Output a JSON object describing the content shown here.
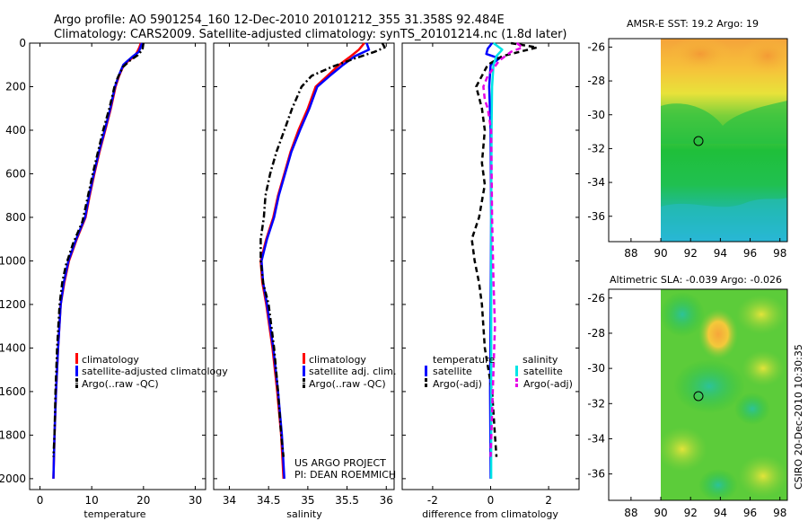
{
  "header": {
    "title_line1": "Argo profile: AO 5901254_160 12-Dec-2010 20101212_355 31.358S 92.484E",
    "title_line2": "Climatology: CARS2009. Satellite-adjusted climatology: synTS_20101214.nc (1.8d later)"
  },
  "credit": {
    "line1": "US ARGO PROJECT",
    "line2": "PI: DEAN ROEMMICH",
    "timestamp": "CSIRO 20-Dec-2010 10:30:35"
  },
  "colors": {
    "climatology": "#ff0000",
    "satellite": "#0000ff",
    "argo": "#000000",
    "salinity_satellite": "#00e5e5",
    "salinity_argo": "#e600e6"
  },
  "chart_data": [
    {
      "id": "temperature",
      "type": "line",
      "xlabel": "temperature",
      "ylabel": "",
      "xlim": [
        -2,
        32
      ],
      "ylim": [
        2050,
        0
      ],
      "xticks": [
        0,
        10,
        20,
        30
      ],
      "yticks": [
        0,
        200,
        400,
        600,
        800,
        1000,
        1200,
        1400,
        1600,
        1800,
        2000
      ],
      "legend": {
        "placement": "bottom-right",
        "entries": [
          "climatology",
          "satellite-adjusted climatology",
          "Argo(..raw -QC)"
        ]
      },
      "series": [
        {
          "name": "climatology",
          "style": "solid",
          "color": "#ff0000",
          "points": [
            [
              19.5,
              0
            ],
            [
              19.2,
              20
            ],
            [
              18.8,
              40
            ],
            [
              18.3,
              60
            ],
            [
              17.2,
              80
            ],
            [
              16.2,
              100
            ],
            [
              15.3,
              150
            ],
            [
              14.6,
              200
            ],
            [
              13.7,
              300
            ],
            [
              12.6,
              400
            ],
            [
              11.5,
              500
            ],
            [
              10.5,
              600
            ],
            [
              9.6,
              700
            ],
            [
              8.8,
              800
            ],
            [
              7.1,
              900
            ],
            [
              5.6,
              1000
            ],
            [
              4.7,
              1100
            ],
            [
              4.0,
              1200
            ],
            [
              3.5,
              1400
            ],
            [
              3.1,
              1600
            ],
            [
              2.8,
              1800
            ],
            [
              2.6,
              2000
            ]
          ]
        },
        {
          "name": "satellite-adjusted climatology",
          "style": "solid",
          "color": "#0000ff",
          "points": [
            [
              19.7,
              0
            ],
            [
              19.4,
              20
            ],
            [
              19.1,
              40
            ],
            [
              18.0,
              60
            ],
            [
              17.0,
              80
            ],
            [
              16.1,
              100
            ],
            [
              15.2,
              150
            ],
            [
              14.5,
              200
            ],
            [
              13.6,
              300
            ],
            [
              12.5,
              400
            ],
            [
              11.4,
              500
            ],
            [
              10.4,
              600
            ],
            [
              9.5,
              700
            ],
            [
              8.7,
              800
            ],
            [
              7.0,
              900
            ],
            [
              5.5,
              1000
            ],
            [
              4.6,
              1100
            ],
            [
              4.0,
              1200
            ],
            [
              3.5,
              1400
            ],
            [
              3.1,
              1600
            ],
            [
              2.8,
              1800
            ],
            [
              2.6,
              2000
            ]
          ]
        },
        {
          "name": "Argo(..raw -QC)",
          "style": "dashdot",
          "color": "#000000",
          "points": [
            [
              20.0,
              0
            ],
            [
              19.9,
              15
            ],
            [
              19.8,
              30
            ],
            [
              18.9,
              55
            ],
            [
              17.4,
              80
            ],
            [
              16.0,
              110
            ],
            [
              15.0,
              160
            ],
            [
              14.4,
              200
            ],
            [
              13.4,
              300
            ],
            [
              12.2,
              400
            ],
            [
              11.2,
              500
            ],
            [
              10.2,
              600
            ],
            [
              9.3,
              700
            ],
            [
              8.2,
              820
            ],
            [
              6.4,
              920
            ],
            [
              5.0,
              1020
            ],
            [
              4.3,
              1100
            ],
            [
              3.8,
              1200
            ],
            [
              3.3,
              1400
            ],
            [
              3.0,
              1600
            ],
            [
              2.8,
              1800
            ],
            [
              2.6,
              1900
            ]
          ]
        }
      ]
    },
    {
      "id": "salinity",
      "type": "line",
      "xlabel": "salinity",
      "ylabel": "",
      "xlim": [
        33.8,
        36.1
      ],
      "ylim": [
        2050,
        0
      ],
      "xticks": [
        34,
        34.5,
        35,
        35.5,
        36
      ],
      "yticks": [
        0,
        200,
        400,
        600,
        800,
        1000,
        1200,
        1400,
        1600,
        1800,
        2000
      ],
      "legend": {
        "placement": "bottom-right",
        "entries": [
          "climatology",
          "satellite adj. clim.",
          "Argo(..raw -QC)"
        ]
      },
      "series": [
        {
          "name": "climatology",
          "style": "solid",
          "color": "#ff0000",
          "points": [
            [
              35.72,
              0
            ],
            [
              35.65,
              30
            ],
            [
              35.55,
              60
            ],
            [
              35.4,
              100
            ],
            [
              35.25,
              150
            ],
            [
              35.1,
              200
            ],
            [
              35.0,
              300
            ],
            [
              34.88,
              400
            ],
            [
              34.78,
              500
            ],
            [
              34.7,
              600
            ],
            [
              34.62,
              700
            ],
            [
              34.56,
              800
            ],
            [
              34.47,
              900
            ],
            [
              34.4,
              1000
            ],
            [
              34.42,
              1100
            ],
            [
              34.47,
              1200
            ],
            [
              34.55,
              1400
            ],
            [
              34.61,
              1600
            ],
            [
              34.66,
              1800
            ],
            [
              34.69,
              2000
            ]
          ]
        },
        {
          "name": "satellite adj. clim.",
          "style": "solid",
          "color": "#0000ff",
          "points": [
            [
              35.75,
              0
            ],
            [
              35.78,
              30
            ],
            [
              35.6,
              60
            ],
            [
              35.45,
              100
            ],
            [
              35.28,
              150
            ],
            [
              35.12,
              200
            ],
            [
              35.02,
              300
            ],
            [
              34.9,
              400
            ],
            [
              34.79,
              500
            ],
            [
              34.71,
              600
            ],
            [
              34.63,
              700
            ],
            [
              34.57,
              800
            ],
            [
              34.48,
              900
            ],
            [
              34.41,
              1000
            ],
            [
              34.43,
              1100
            ],
            [
              34.48,
              1200
            ],
            [
              34.56,
              1400
            ],
            [
              34.62,
              1600
            ],
            [
              34.67,
              1800
            ],
            [
              34.7,
              2000
            ]
          ]
        },
        {
          "name": "Argo(..raw -QC)",
          "style": "dashdot",
          "color": "#000000",
          "points": [
            [
              35.95,
              0
            ],
            [
              35.98,
              20
            ],
            [
              35.85,
              40
            ],
            [
              35.6,
              70
            ],
            [
              35.3,
              110
            ],
            [
              35.05,
              150
            ],
            [
              34.92,
              200
            ],
            [
              34.8,
              300
            ],
            [
              34.7,
              400
            ],
            [
              34.6,
              500
            ],
            [
              34.52,
              600
            ],
            [
              34.46,
              700
            ],
            [
              34.44,
              800
            ],
            [
              34.4,
              900
            ],
            [
              34.4,
              1000
            ],
            [
              34.43,
              1100
            ],
            [
              34.5,
              1200
            ],
            [
              34.57,
              1400
            ],
            [
              34.62,
              1600
            ],
            [
              34.66,
              1800
            ],
            [
              34.69,
              1900
            ]
          ]
        }
      ]
    },
    {
      "id": "difference",
      "type": "line",
      "xlabel": "difference from climatology",
      "ylabel": "",
      "xlim": [
        -3.05,
        3.05
      ],
      "ylim": [
        2050,
        0
      ],
      "xticks": [
        -2,
        0,
        2
      ],
      "yticks": [
        0,
        200,
        400,
        600,
        800,
        1000,
        1200,
        1400,
        1600,
        1800,
        2000
      ],
      "legend": {
        "placement": "bottom",
        "temperature_header": "temperature",
        "salinity_header": "salinity",
        "entries": [
          "satellite",
          "Argo(-adj)",
          "satellite",
          "Argo(-adj)"
        ]
      },
      "series": [
        {
          "name": "temperature satellite",
          "style": "solid",
          "color": "#0000ff",
          "points": [
            [
              0.05,
              0
            ],
            [
              -0.1,
              25
            ],
            [
              -0.15,
              50
            ],
            [
              0.3,
              70
            ],
            [
              0.0,
              100
            ],
            [
              -0.05,
              200
            ],
            [
              0.0,
              400
            ],
            [
              0.02,
              800
            ],
            [
              0.0,
              1200
            ],
            [
              -0.02,
              1600
            ],
            [
              0.0,
              2000
            ]
          ]
        },
        {
          "name": "temperature Argo(-adj)",
          "style": "dashed",
          "color": "#000000",
          "points": [
            [
              0.7,
              0
            ],
            [
              1.6,
              20
            ],
            [
              1.0,
              40
            ],
            [
              0.4,
              60
            ],
            [
              -0.1,
              100
            ],
            [
              -0.5,
              200
            ],
            [
              -0.3,
              300
            ],
            [
              -0.2,
              400
            ],
            [
              -0.3,
              550
            ],
            [
              -0.2,
              650
            ],
            [
              -0.4,
              800
            ],
            [
              -0.65,
              900
            ],
            [
              -0.55,
              1000
            ],
            [
              -0.4,
              1100
            ],
            [
              -0.3,
              1200
            ],
            [
              -0.2,
              1400
            ],
            [
              0.05,
              1600
            ],
            [
              0.15,
              1800
            ],
            [
              0.2,
              1900
            ]
          ]
        },
        {
          "name": "salinity satellite",
          "style": "solid",
          "color": "#00e5e5",
          "points": [
            [
              0.1,
              0
            ],
            [
              0.4,
              30
            ],
            [
              0.2,
              60
            ],
            [
              0.1,
              100
            ],
            [
              0.05,
              200
            ],
            [
              0.03,
              400
            ],
            [
              0.02,
              800
            ],
            [
              0.02,
              1200
            ],
            [
              0.02,
              1600
            ],
            [
              0.02,
              2000
            ]
          ]
        },
        {
          "name": "salinity Argo(-adj)",
          "style": "dashed",
          "color": "#e600e6",
          "points": [
            [
              0.9,
              0
            ],
            [
              1.1,
              20
            ],
            [
              0.7,
              40
            ],
            [
              0.3,
              80
            ],
            [
              -0.1,
              150
            ],
            [
              -0.25,
              200
            ],
            [
              -0.2,
              260
            ],
            [
              -0.1,
              300
            ],
            [
              0.02,
              400
            ],
            [
              0.05,
              800
            ],
            [
              0.1,
              1100
            ],
            [
              0.15,
              1300
            ],
            [
              0.1,
              1500
            ],
            [
              0.05,
              1700
            ],
            [
              0.0,
              1900
            ]
          ]
        }
      ]
    },
    {
      "id": "sst_map",
      "type": "heatmap",
      "title": "AMSR-E SST: 19.2 Argo: 19",
      "xlim": [
        86.5,
        98.5
      ],
      "ylim": [
        -37.5,
        -25.5
      ],
      "xticks": [
        88,
        90,
        92,
        94,
        96,
        98
      ],
      "yticks": [
        -26,
        -28,
        -30,
        -32,
        -34,
        -36
      ],
      "data_xlim": [
        90,
        98.5
      ],
      "argo_marker": {
        "lon": 92.5,
        "lat": -31.4
      }
    },
    {
      "id": "sla_map",
      "type": "heatmap",
      "title": "Altimetric SLA: -0.039 Argo: -0.026",
      "xlim": [
        86.5,
        98.5
      ],
      "ylim": [
        -37.5,
        -25.5
      ],
      "xticks": [
        88,
        90,
        92,
        94,
        96,
        98
      ],
      "yticks": [
        -26,
        -28,
        -30,
        -32,
        -34,
        -36
      ],
      "data_xlim": [
        90,
        98.5
      ],
      "argo_marker": {
        "lon": 92.5,
        "lat": -31.4
      }
    }
  ]
}
